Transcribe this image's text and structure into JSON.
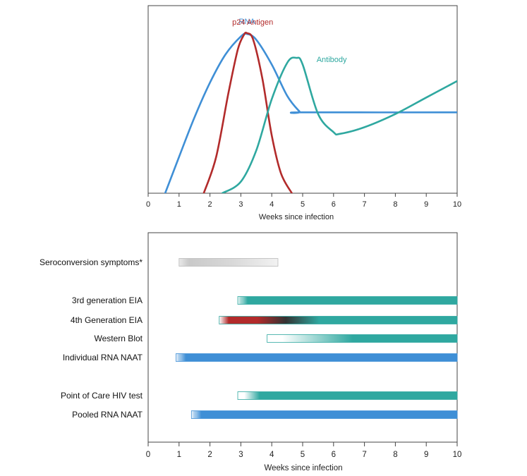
{
  "chart_data": [
    {
      "type": "line",
      "title": "",
      "xlabel": "Weeks since infection",
      "ylabel": "",
      "xlim": [
        0,
        10
      ],
      "ylim": [
        0,
        1
      ],
      "xticks": [
        0,
        1,
        2,
        3,
        4,
        5,
        6,
        7,
        8,
        9,
        10
      ],
      "series": [
        {
          "name": "RNA",
          "color": "#3f8fd6",
          "x": [
            0.55,
            1.0,
            1.5,
            2.0,
            2.5,
            3.0,
            3.2,
            3.5,
            4.0,
            4.5,
            4.9,
            5.0,
            10.0
          ],
          "y": [
            0.0,
            0.22,
            0.46,
            0.67,
            0.84,
            0.95,
            0.965,
            0.93,
            0.78,
            0.59,
            0.495,
            0.49,
            0.49
          ]
        },
        {
          "name": "p24 Antigen",
          "color": "#b22b2b",
          "x": [
            1.8,
            2.2,
            2.6,
            2.9,
            3.1,
            3.2,
            3.4,
            3.7,
            4.0,
            4.3,
            4.65
          ],
          "y": [
            0.0,
            0.22,
            0.61,
            0.87,
            0.96,
            0.97,
            0.93,
            0.69,
            0.35,
            0.12,
            0.0
          ]
        },
        {
          "name": "Antibody",
          "color": "#2fa8a0",
          "x": [
            2.4,
            3.0,
            3.5,
            4.0,
            4.5,
            4.8,
            5.0,
            5.5,
            6.0,
            6.2,
            7.0,
            8.0,
            9.0,
            10.0
          ],
          "y": [
            0.0,
            0.07,
            0.26,
            0.57,
            0.79,
            0.82,
            0.78,
            0.48,
            0.37,
            0.36,
            0.4,
            0.48,
            0.58,
            0.68
          ]
        }
      ]
    },
    {
      "type": "bar",
      "orientation": "horizontal",
      "xlabel": "Weeks since infection",
      "xlim": [
        0,
        10
      ],
      "xticks": [
        0,
        1,
        2,
        3,
        4,
        5,
        6,
        7,
        8,
        9,
        10
      ],
      "rows": [
        {
          "label": "Seroconversion symptoms*",
          "start": 1.0,
          "end": 4.2,
          "style": "fade",
          "color": "#aaaaaa"
        },
        {
          "label": "3rd generation EIA",
          "start": 2.9,
          "end": 10,
          "style": "solid-left-fade",
          "color": "#2fa8a0"
        },
        {
          "label": "4th Generation EIA",
          "start": 2.3,
          "end": 10,
          "style": "red-to-teal",
          "color": "#2fa8a0",
          "color2": "#b22b2b"
        },
        {
          "label": "Western Blot",
          "start": 3.85,
          "end": 10,
          "style": "fade-in",
          "color": "#2fa8a0"
        },
        {
          "label": "Individual RNA NAAT",
          "start": 0.9,
          "end": 10,
          "style": "solid-left-fade",
          "color": "#3f8fd6"
        },
        {
          "label": "Point of Care HIV test",
          "start": 2.9,
          "end": 10,
          "style": "fade-in-short",
          "color": "#2fa8a0"
        },
        {
          "label": "Pooled RNA NAAT",
          "start": 1.4,
          "end": 10,
          "style": "solid-left-fade",
          "color": "#3f8fd6"
        }
      ]
    }
  ]
}
